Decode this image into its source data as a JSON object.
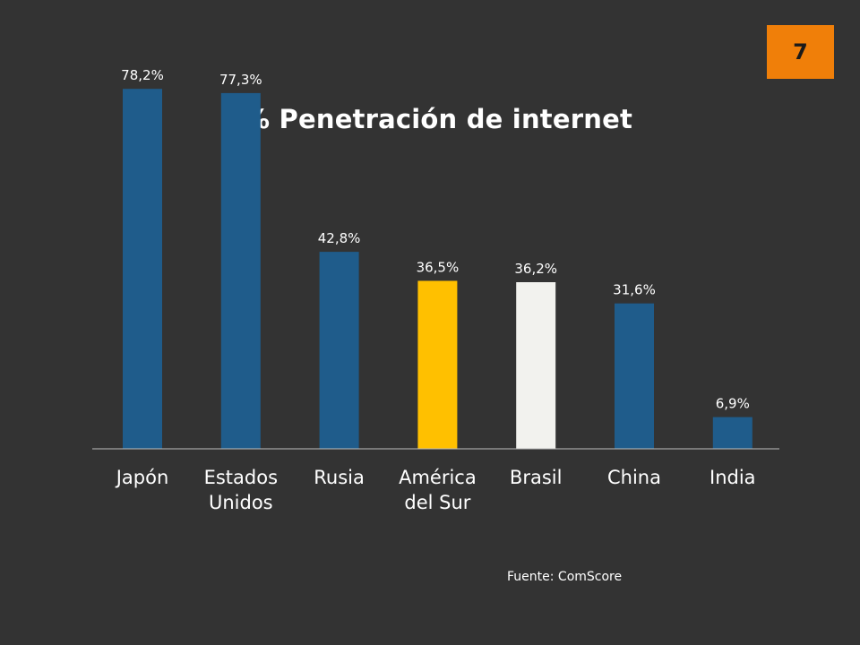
{
  "slide": {
    "page_number": "7",
    "source": "Fuente: ComScore"
  },
  "colors": {
    "background": "#333333",
    "badge": "#F07F09",
    "bar_default": "#1F5C8B",
    "bar_highlight_1": "#FFC000",
    "bar_highlight_2": "#F2F2EE"
  },
  "chart_data": {
    "type": "bar",
    "title": "% Penetración de internet",
    "xlabel": "",
    "ylabel": "",
    "ylim": [
      0,
      80
    ],
    "grid": false,
    "legend": "none",
    "categories": [
      "Japón",
      "Estados Unidos",
      "Rusia",
      "América del Sur",
      "Brasil",
      "China",
      "India"
    ],
    "category_lines": [
      [
        "Japón"
      ],
      [
        "Estados",
        "Unidos"
      ],
      [
        "Rusia"
      ],
      [
        "América",
        "del Sur"
      ],
      [
        "Brasil"
      ],
      [
        "China"
      ],
      [
        "India"
      ]
    ],
    "values": [
      78.2,
      77.3,
      42.8,
      36.5,
      36.2,
      31.6,
      6.9
    ],
    "data_labels": [
      "78,2%",
      "77,3%",
      "42,8%",
      "36,5%",
      "36,2%",
      "31,6%",
      "6,9%"
    ],
    "bar_colors": [
      "#1F5C8B",
      "#1F5C8B",
      "#1F5C8B",
      "#FFC000",
      "#F2F2EE",
      "#1F5C8B",
      "#1F5C8B"
    ]
  }
}
